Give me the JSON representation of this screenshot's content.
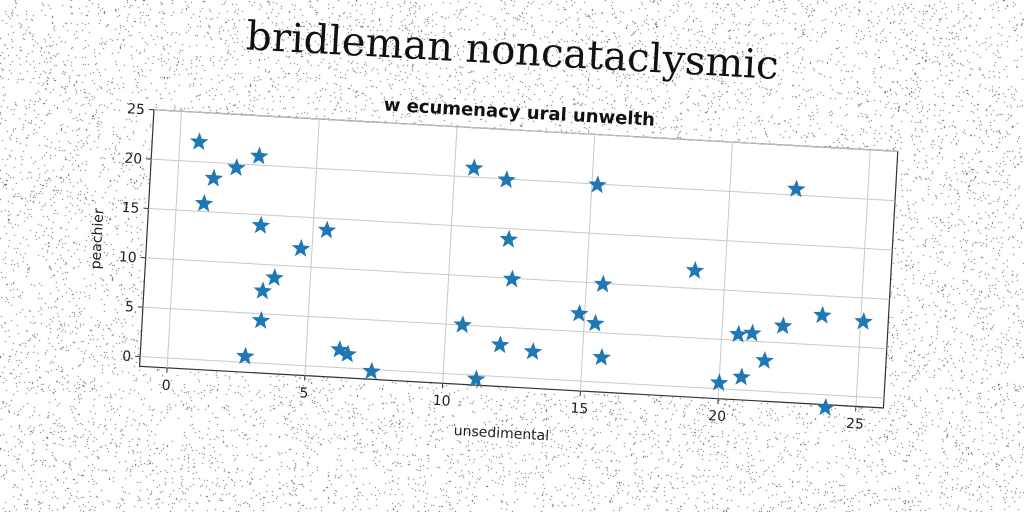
{
  "suptitle": "bridleman noncataclysmic",
  "chart_data": {
    "type": "scatter",
    "title": "w ecumenacy ural unwelth",
    "xlabel": "unsedimental",
    "ylabel": "peachier",
    "xlim": [
      -1,
      26
    ],
    "ylim": [
      -1,
      25
    ],
    "xticks": [
      0,
      5,
      10,
      15,
      20,
      25
    ],
    "yticks": [
      0,
      5,
      10,
      15,
      20,
      25
    ],
    "grid": true,
    "marker": "star",
    "color": "#1f77b4",
    "series": [
      {
        "points": [
          [
            0.7,
            22
          ],
          [
            1.0,
            15.8
          ],
          [
            1.3,
            18.4
          ],
          [
            2.1,
            19.6
          ],
          [
            2.9,
            20.9
          ],
          [
            3.1,
            13.9
          ],
          [
            3.3,
            7.3
          ],
          [
            3.3,
            4.3
          ],
          [
            3.7,
            8.7
          ],
          [
            2.8,
            0.6
          ],
          [
            4.6,
            11.8
          ],
          [
            5.5,
            13.8
          ],
          [
            6.2,
            1.8
          ],
          [
            6.5,
            1.4
          ],
          [
            7.4,
            -0.2
          ],
          [
            10.7,
            20.9
          ],
          [
            11.9,
            19.9
          ],
          [
            12.1,
            13.9
          ],
          [
            12.3,
            9.9
          ],
          [
            10.6,
            5
          ],
          [
            12.0,
            3.2
          ],
          [
            13.2,
            2.7
          ],
          [
            11.2,
            -0.4
          ],
          [
            15.2,
            19.9
          ],
          [
            15.6,
            9.9
          ],
          [
            14.8,
            6.8
          ],
          [
            15.4,
            5.9
          ],
          [
            15.7,
            2.5
          ],
          [
            18.9,
            11.8
          ],
          [
            22.4,
            20.6
          ],
          [
            20.6,
            5.6
          ],
          [
            21.1,
            5.8
          ],
          [
            20.0,
            0.6
          ],
          [
            20.8,
            1.3
          ],
          [
            21.6,
            3.1
          ],
          [
            22.2,
            6.7
          ],
          [
            23.6,
            8
          ],
          [
            25.1,
            7.6
          ],
          [
            23.9,
            -1.3
          ]
        ]
      }
    ]
  }
}
